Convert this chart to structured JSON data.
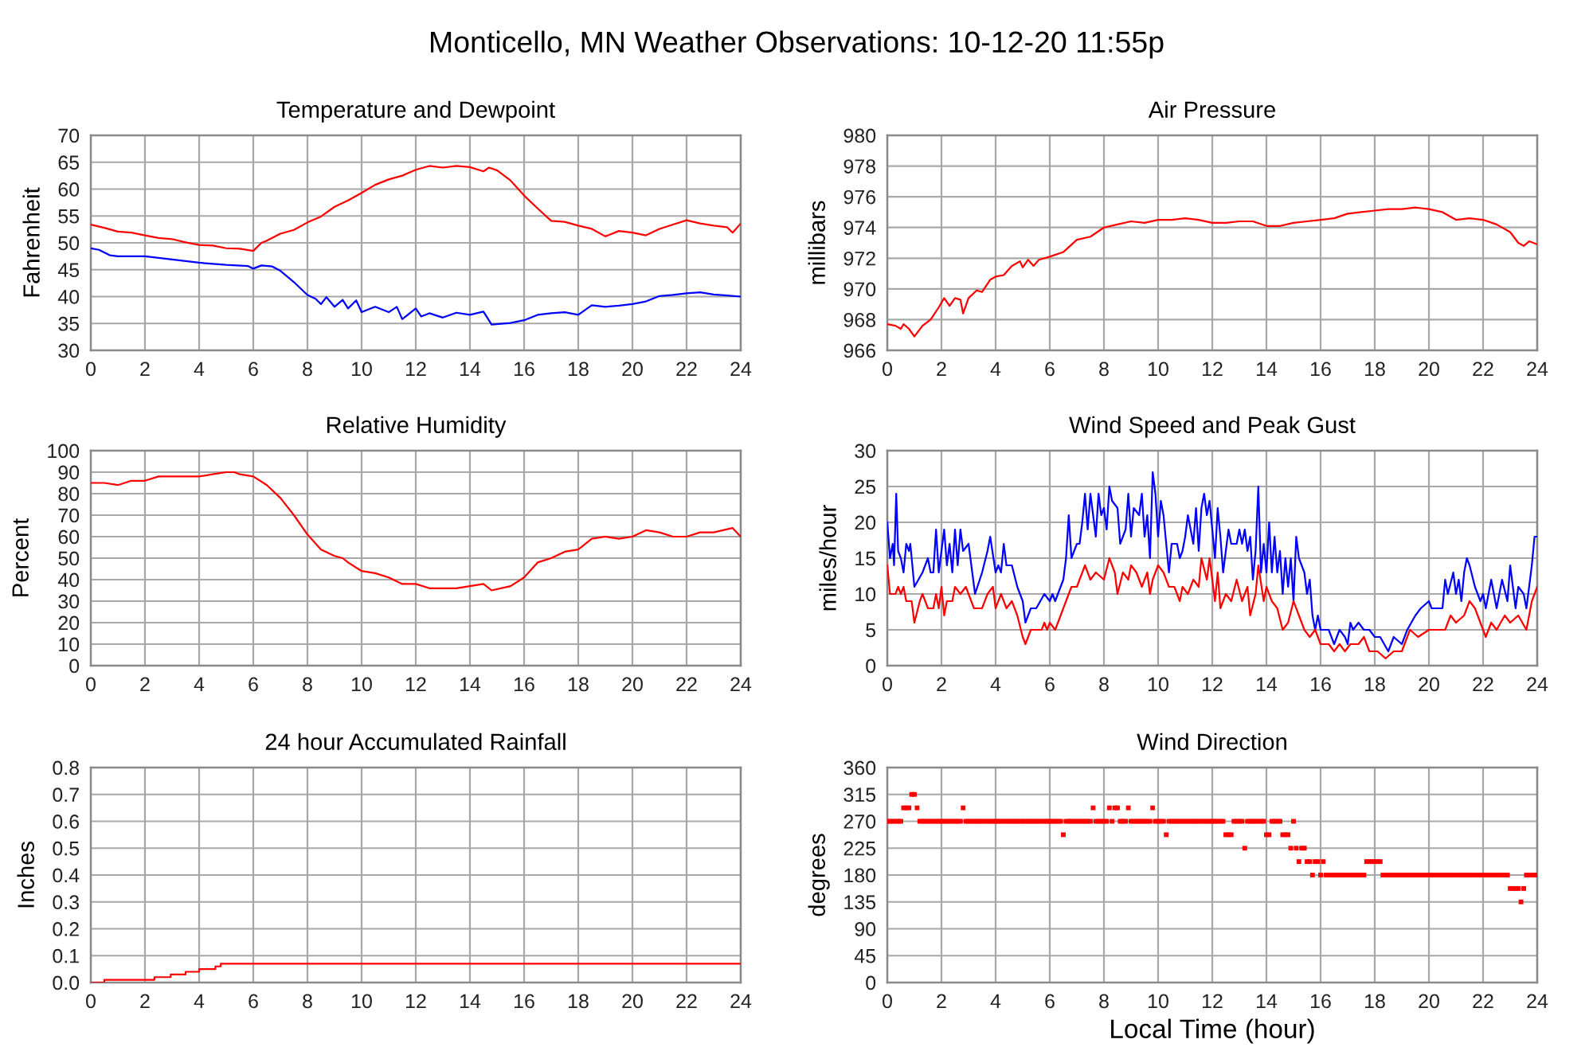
{
  "chart_data": [
    {
      "type": "line",
      "title": "Temperature and Dewpoint",
      "ylabel": "Fahrenheit",
      "annotations": [
        "Monticello, MN Weather Observations: 10-12-20 11:55p"
      ],
      "xlim": [
        0,
        24
      ],
      "xticks": [
        0,
        2,
        4,
        6,
        8,
        10,
        12,
        14,
        16,
        18,
        20,
        22,
        24
      ],
      "ylim": [
        30,
        70
      ],
      "yticks": [
        30,
        35,
        40,
        45,
        50,
        55,
        60,
        65,
        70
      ],
      "grid": true,
      "series": [
        {
          "color": "#ff0000",
          "x": [
            0,
            0.5,
            1,
            1.5,
            2,
            2.5,
            3,
            3.5,
            4,
            4.5,
            5,
            5.5,
            6,
            6.3,
            6.5,
            7,
            7.5,
            8,
            8.5,
            9,
            9.5,
            10,
            10.5,
            11,
            11.5,
            12,
            12.5,
            13,
            13.5,
            14,
            14.5,
            14.7,
            15,
            15.5,
            16,
            16.5,
            17,
            17.5,
            18,
            18.5,
            19,
            19.5,
            20,
            20.5,
            21,
            21.5,
            22,
            22.5,
            23,
            23.5,
            23.7,
            24
          ],
          "values": [
            53.4,
            52.8,
            52.1,
            51.9,
            51.4,
            50.9,
            50.7,
            50.1,
            49.6,
            49.5,
            49.0,
            48.9,
            48.5,
            50.0,
            50.4,
            51.7,
            52.4,
            53.8,
            54.9,
            56.7,
            57.9,
            59.3,
            60.8,
            61.8,
            62.5,
            63.6,
            64.3,
            64.0,
            64.3,
            64.1,
            63.3,
            64.0,
            63.5,
            61.6,
            58.8,
            56.4,
            54.1,
            53.9,
            53.2,
            52.6,
            51.2,
            52.2,
            51.9,
            51.4,
            52.6,
            53.4,
            54.2,
            53.6,
            53.2,
            52.9,
            51.9,
            53.6
          ]
        },
        {
          "color": "#0000ff",
          "x": [
            0,
            0.3,
            0.7,
            1,
            2,
            3,
            4,
            5,
            5.8,
            6,
            6.3,
            6.7,
            7,
            7.5,
            8,
            8.3,
            8.5,
            8.7,
            9,
            9.3,
            9.5,
            9.8,
            10,
            10.5,
            11,
            11.3,
            11.5,
            12,
            12.2,
            12.5,
            13,
            13.5,
            14,
            14.5,
            14.8,
            15.5,
            16,
            16.5,
            17,
            17.5,
            18,
            18.5,
            19,
            19.5,
            20,
            20.5,
            21,
            21.5,
            22,
            22.5,
            23,
            23.5,
            24
          ],
          "values": [
            49.0,
            48.7,
            47.7,
            47.5,
            47.5,
            46.9,
            46.3,
            45.9,
            45.7,
            45.2,
            45.8,
            45.6,
            44.8,
            42.7,
            40.3,
            39.6,
            38.6,
            39.9,
            38.1,
            39.4,
            37.8,
            39.3,
            37.1,
            38.1,
            37.1,
            38.1,
            35.8,
            37.8,
            36.3,
            36.9,
            36.1,
            37.0,
            36.6,
            37.2,
            34.8,
            35.1,
            35.6,
            36.6,
            36.9,
            37.1,
            36.6,
            38.4,
            38.1,
            38.3,
            38.6,
            39.1,
            40.1,
            40.3,
            40.6,
            40.8,
            40.4,
            40.2,
            40.0
          ]
        }
      ]
    },
    {
      "type": "line",
      "title": "Air Pressure",
      "ylabel": "millibars",
      "xlim": [
        0,
        24
      ],
      "xticks": [
        0,
        2,
        4,
        6,
        8,
        10,
        12,
        14,
        16,
        18,
        20,
        22,
        24
      ],
      "ylim": [
        966,
        980
      ],
      "yticks": [
        966,
        968,
        970,
        972,
        974,
        976,
        978,
        980
      ],
      "grid": true,
      "series": [
        {
          "color": "#ff0000",
          "x": [
            0,
            0.3,
            0.5,
            0.6,
            0.8,
            1,
            1.3,
            1.6,
            1.9,
            2.1,
            2.3,
            2.5,
            2.7,
            2.8,
            3,
            3.3,
            3.5,
            3.8,
            4,
            4.3,
            4.6,
            4.9,
            5,
            5.2,
            5.4,
            5.6,
            6,
            6.5,
            7,
            7.5,
            8,
            8.5,
            9,
            9.5,
            10,
            10.5,
            11,
            11.5,
            12,
            12.5,
            13,
            13.5,
            14,
            14.5,
            15,
            15.5,
            16,
            16.5,
            17,
            17.5,
            18,
            18.5,
            19,
            19.5,
            20,
            20.5,
            21,
            21.5,
            22,
            22.5,
            23,
            23.3,
            23.5,
            23.7,
            24
          ],
          "values": [
            967.7,
            967.6,
            967.4,
            967.7,
            967.4,
            966.9,
            967.6,
            968.0,
            968.8,
            969.4,
            968.9,
            969.4,
            969.3,
            968.4,
            969.4,
            969.9,
            969.8,
            970.6,
            970.8,
            970.9,
            971.5,
            971.8,
            971.4,
            971.9,
            971.5,
            971.9,
            972.1,
            972.4,
            973.2,
            973.4,
            974.0,
            974.2,
            974.4,
            974.3,
            974.5,
            974.5,
            974.6,
            974.5,
            974.3,
            974.3,
            974.4,
            974.4,
            974.1,
            974.1,
            974.3,
            974.4,
            974.5,
            974.6,
            974.9,
            975.0,
            975.1,
            975.2,
            975.2,
            975.3,
            975.2,
            975.0,
            974.5,
            974.6,
            974.5,
            974.2,
            973.7,
            973.0,
            972.8,
            973.1,
            972.9
          ]
        }
      ]
    },
    {
      "type": "line",
      "title": "Relative Humidity",
      "ylabel": "Percent",
      "xlim": [
        0,
        24
      ],
      "xticks": [
        0,
        2,
        4,
        6,
        8,
        10,
        12,
        14,
        16,
        18,
        20,
        22,
        24
      ],
      "ylim": [
        0,
        100
      ],
      "yticks": [
        0,
        10,
        20,
        30,
        40,
        50,
        60,
        70,
        80,
        90,
        100
      ],
      "grid": true,
      "series": [
        {
          "color": "#ff0000",
          "x": [
            0,
            0.5,
            1,
            1.5,
            2,
            2.5,
            3,
            3.5,
            4,
            4.5,
            5,
            5.3,
            5.5,
            6,
            6.5,
            7,
            7.5,
            8,
            8.5,
            9,
            9.3,
            9.5,
            10,
            10.5,
            11,
            11.5,
            12,
            12.5,
            13,
            13.5,
            14,
            14.5,
            14.8,
            15.5,
            16,
            16.5,
            17,
            17.5,
            18,
            18.5,
            19,
            19.5,
            20,
            20.5,
            21,
            21.5,
            22,
            22.5,
            23,
            23.7,
            24
          ],
          "values": [
            85,
            85,
            84,
            86,
            86,
            88,
            88,
            88,
            88,
            89,
            90,
            90,
            89,
            88,
            84,
            78,
            70,
            61,
            54,
            51,
            50,
            48,
            44,
            43,
            41,
            38,
            38,
            36,
            36,
            36,
            37,
            38,
            35,
            37,
            41,
            48,
            50,
            53,
            54,
            59,
            60,
            59,
            60,
            63,
            62,
            60,
            60,
            62,
            62,
            64,
            60
          ]
        }
      ]
    },
    {
      "type": "line",
      "title": "Wind Speed and Peak Gust",
      "ylabel": "miles/hour",
      "xlim": [
        0,
        24
      ],
      "xticks": [
        0,
        2,
        4,
        6,
        8,
        10,
        12,
        14,
        16,
        18,
        20,
        22,
        24
      ],
      "ylim": [
        0,
        30
      ],
      "yticks": [
        0,
        5,
        10,
        15,
        20,
        25,
        30
      ],
      "grid": true,
      "series": [
        {
          "color": "#0000ff",
          "x": [
            0,
            0.1,
            0.2,
            0.25,
            0.33,
            0.4,
            0.5,
            0.6,
            0.7,
            0.8,
            0.85,
            1.0,
            1.3,
            1.5,
            1.6,
            1.7,
            1.8,
            1.9,
            2.0,
            2.1,
            2.2,
            2.3,
            2.4,
            2.5,
            2.6,
            2.7,
            2.8,
            3.0,
            3.24,
            3.5,
            3.7,
            3.8,
            4.0,
            4.1,
            4.2,
            4.3,
            4.4,
            4.6,
            4.8,
            5.0,
            5.1,
            5.3,
            5.5,
            5.8,
            6.0,
            6.1,
            6.2,
            6.4,
            6.5,
            6.6,
            6.7,
            6.8,
            7.0,
            7.1,
            7.2,
            7.3,
            7.4,
            7.5,
            7.6,
            7.7,
            7.8,
            7.9,
            8.0,
            8.1,
            8.2,
            8.3,
            8.5,
            8.6,
            8.8,
            8.9,
            9.0,
            9.1,
            9.3,
            9.4,
            9.5,
            9.6,
            9.7,
            9.8,
            9.9,
            10.0,
            10.1,
            10.2,
            10.4,
            10.5,
            10.7,
            10.8,
            10.9,
            11.0,
            11.1,
            11.2,
            11.3,
            11.4,
            11.5,
            11.6,
            11.7,
            11.8,
            11.9,
            12.0,
            12.1,
            12.2,
            12.3,
            12.4,
            12.6,
            12.7,
            12.9,
            13.0,
            13.1,
            13.2,
            13.3,
            13.4,
            13.5,
            13.6,
            13.7,
            13.8,
            13.9,
            14.0,
            14.1,
            14.2,
            14.3,
            14.4,
            14.5,
            14.6,
            14.7,
            14.8,
            14.9,
            15.0,
            15.1,
            15.2,
            15.4,
            15.5,
            15.6,
            15.7,
            15.8,
            15.9,
            16.0,
            16.3,
            16.5,
            16.7,
            16.9,
            17.0,
            17.1,
            17.2,
            17.4,
            17.6,
            17.8,
            18.0,
            18.2,
            18.5,
            18.7,
            19.0,
            19.2,
            19.5,
            19.7,
            20.0,
            20.1,
            20.5,
            20.6,
            20.7,
            20.9,
            21.0,
            21.1,
            21.2,
            21.3,
            21.4,
            21.5,
            21.7,
            21.9,
            22.0,
            22.1,
            22.3,
            22.5,
            22.7,
            22.9,
            23.0,
            23.2,
            23.3,
            23.5,
            23.6,
            23.8,
            23.9,
            24
          ],
          "values": [
            20,
            15,
            17,
            14,
            24,
            16,
            15,
            13,
            17,
            16,
            17,
            11,
            13,
            15,
            13,
            13,
            19,
            13,
            16,
            19,
            14,
            17,
            13,
            19,
            14,
            19,
            16,
            17,
            10,
            13,
            16,
            18,
            13,
            14,
            13,
            17,
            14,
            14,
            11,
            9,
            6,
            8,
            8,
            10,
            9,
            10,
            9,
            11,
            12,
            15,
            21,
            15,
            17,
            17,
            20,
            24,
            19,
            24,
            21,
            18,
            24,
            21,
            22,
            19,
            25,
            23,
            22,
            17,
            19,
            24,
            18,
            22,
            21,
            24,
            18,
            21,
            15,
            27,
            24,
            18,
            23,
            21,
            13,
            17,
            17,
            15,
            16,
            18,
            21,
            19,
            17,
            22,
            16,
            22,
            24,
            21,
            23,
            19,
            15,
            22,
            18,
            13,
            19,
            17,
            17,
            19,
            17,
            19,
            16,
            18,
            12,
            16,
            25,
            13,
            17,
            13,
            20,
            13,
            18,
            13,
            16,
            10,
            15,
            11,
            15,
            9,
            18,
            15,
            13,
            10,
            12,
            7,
            5,
            7,
            5,
            5,
            3,
            5,
            4,
            3,
            6,
            5,
            6,
            5,
            5,
            4,
            4,
            2,
            4,
            3,
            5,
            7,
            8,
            9,
            8,
            8,
            12,
            10,
            13,
            10,
            12,
            9,
            13,
            15,
            14,
            11,
            9,
            10,
            8,
            12,
            8,
            12,
            9,
            14,
            8,
            11,
            10,
            8,
            14,
            18,
            18
          ]
        },
        {
          "color": "#ff0000",
          "x": [
            0,
            0.1,
            0.3,
            0.4,
            0.5,
            0.6,
            0.7,
            0.9,
            1.0,
            1.2,
            1.3,
            1.5,
            1.7,
            1.8,
            1.9,
            2.0,
            2.1,
            2.2,
            2.4,
            2.5,
            2.7,
            2.9,
            3.0,
            3.2,
            3.5,
            3.7,
            3.9,
            4.0,
            4.2,
            4.4,
            4.6,
            4.8,
            5.0,
            5.1,
            5.3,
            5.7,
            5.8,
            5.9,
            6.0,
            6.2,
            6.4,
            6.6,
            6.8,
            7.0,
            7.2,
            7.3,
            7.5,
            7.7,
            8.0,
            8.2,
            8.4,
            8.5,
            8.7,
            8.9,
            9.0,
            9.2,
            9.4,
            9.6,
            9.7,
            9.8,
            10.0,
            10.2,
            10.4,
            10.6,
            10.8,
            10.9,
            11.1,
            11.3,
            11.5,
            11.6,
            11.8,
            11.9,
            12.0,
            12.1,
            12.2,
            12.3,
            12.5,
            12.7,
            12.9,
            13.1,
            13.3,
            13.4,
            13.6,
            13.7,
            13.9,
            14.0,
            14.2,
            14.4,
            14.6,
            14.8,
            15.0,
            15.2,
            15.4,
            15.6,
            15.8,
            16.0,
            16.3,
            16.5,
            16.7,
            16.9,
            17.1,
            17.4,
            17.6,
            17.8,
            18.1,
            18.4,
            18.7,
            19.0,
            19.3,
            19.6,
            20.0,
            20.3,
            20.6,
            20.8,
            21.0,
            21.3,
            21.5,
            21.7,
            21.9,
            22.1,
            22.3,
            22.5,
            22.8,
            23.0,
            23.3,
            23.6,
            23.8,
            24
          ],
          "values": [
            14,
            10,
            10,
            11,
            10,
            11,
            9,
            9,
            6,
            9,
            10,
            8,
            8,
            10,
            8,
            11,
            7,
            9,
            9,
            11,
            10,
            11,
            10,
            8,
            8,
            10,
            11,
            8,
            10,
            8,
            9,
            7,
            4,
            3,
            5,
            5,
            6,
            5,
            6,
            5,
            7,
            9,
            11,
            11,
            13,
            14,
            12,
            13,
            12,
            15,
            13,
            10,
            13,
            12,
            14,
            13,
            11,
            13,
            10,
            12,
            14,
            13,
            11,
            11,
            9,
            11,
            10,
            12,
            11,
            15,
            12,
            15,
            12,
            9,
            13,
            8,
            10,
            9,
            12,
            9,
            11,
            7,
            10,
            14,
            9,
            11,
            9,
            8,
            5,
            6,
            9,
            7,
            5,
            4,
            5,
            3,
            3,
            2,
            3,
            2,
            3,
            3,
            4,
            2,
            2,
            1,
            2,
            2,
            5,
            4,
            5,
            5,
            5,
            7,
            6,
            7,
            9,
            8,
            6,
            4,
            6,
            5,
            7,
            6,
            7,
            5,
            9,
            11
          ]
        }
      ]
    },
    {
      "type": "step",
      "title": "24 hour Accumulated Rainfall",
      "ylabel": "Inches",
      "xlim": [
        0,
        24
      ],
      "xticks": [
        0,
        2,
        4,
        6,
        8,
        10,
        12,
        14,
        16,
        18,
        20,
        22,
        24
      ],
      "ylim": [
        0,
        0.8
      ],
      "yticks": [
        {
          "value": 0,
          "label": "0.0"
        },
        0.1,
        0.2,
        0.3,
        0.4,
        0.5,
        0.6,
        0.7,
        0.8
      ],
      "grid": true,
      "series": [
        {
          "color": "#ff0000",
          "x": [
            0,
            0.5,
            2.35,
            2.95,
            3.5,
            4.0,
            4.6,
            4.8,
            24
          ],
          "values": [
            0,
            0.01,
            0.02,
            0.03,
            0.04,
            0.05,
            0.06,
            0.07,
            0.07
          ]
        }
      ]
    },
    {
      "type": "scatter",
      "title": "Wind Direction",
      "ylabel": "degrees",
      "xlabel": "Local Time (hour)",
      "marker": "square",
      "xlim": [
        0,
        24
      ],
      "xticks": [
        0,
        2,
        4,
        6,
        8,
        10,
        12,
        14,
        16,
        18,
        20,
        22,
        24
      ],
      "ylim": [
        0,
        360
      ],
      "yticks": [
        0,
        45,
        90,
        135,
        180,
        225,
        270,
        315,
        360
      ],
      "grid": true,
      "series": [
        {
          "color": "#ff0000",
          "x": [
            0,
            0.1,
            0.2,
            0.3,
            0.4,
            0.5,
            0.6,
            0.7,
            0.8,
            0.9,
            1,
            1.1,
            1.2,
            1.3,
            1.4,
            1.5,
            1.6,
            1.7,
            1.8,
            1.9,
            2,
            2.1,
            2.2,
            2.3,
            2.4,
            2.5,
            2.6,
            2.7,
            2.8,
            2.9,
            3,
            3.1,
            3.2,
            3.3,
            3.4,
            3.5,
            3.6,
            3.7,
            3.8,
            3.9,
            4,
            4.1,
            4.2,
            4.3,
            4.4,
            4.5,
            4.6,
            4.7,
            4.8,
            4.9,
            5,
            5.1,
            5.2,
            5.3,
            5.4,
            5.5,
            5.6,
            5.7,
            5.8,
            5.9,
            6,
            6.1,
            6.2,
            6.3,
            6.4,
            6.5,
            6.6,
            6.7,
            6.8,
            6.9,
            7,
            7.1,
            7.2,
            7.3,
            7.4,
            7.5,
            7.6,
            7.7,
            7.8,
            7.9,
            8,
            8.1,
            8.2,
            8.3,
            8.4,
            8.5,
            8.6,
            8.7,
            8.8,
            8.9,
            9,
            9.1,
            9.2,
            9.3,
            9.4,
            9.5,
            9.6,
            9.7,
            9.8,
            9.9,
            10,
            10.1,
            10.2,
            10.3,
            10.4,
            10.5,
            10.6,
            10.7,
            10.8,
            10.9,
            11,
            11.1,
            11.2,
            11.3,
            11.4,
            11.5,
            11.6,
            11.7,
            11.8,
            11.9,
            12,
            12.1,
            12.2,
            12.3,
            12.4,
            12.5,
            12.6,
            12.7,
            12.8,
            12.9,
            13,
            13.1,
            13.2,
            13.3,
            13.4,
            13.5,
            13.6,
            13.7,
            13.8,
            13.9,
            14,
            14.1,
            14.2,
            14.3,
            14.4,
            14.5,
            14.6,
            14.7,
            14.8,
            14.9,
            15,
            15.1,
            15.2,
            15.3,
            15.4,
            15.5,
            15.6,
            15.7,
            15.8,
            15.9,
            16,
            16.1,
            16.2,
            16.3,
            16.4,
            16.5,
            16.6,
            16.7,
            16.8,
            16.9,
            17,
            17.1,
            17.2,
            17.3,
            17.4,
            17.5,
            17.6,
            17.7,
            17.8,
            17.9,
            18,
            18.1,
            18.2,
            18.3,
            18.4,
            18.5,
            18.6,
            18.7,
            18.8,
            18.9,
            19,
            19.1,
            19.2,
            19.3,
            19.4,
            19.5,
            19.6,
            19.7,
            19.8,
            19.9,
            20,
            20.1,
            20.2,
            20.3,
            20.4,
            20.5,
            20.6,
            20.7,
            20.8,
            20.9,
            21,
            21.1,
            21.2,
            21.3,
            21.4,
            21.5,
            21.6,
            21.7,
            21.8,
            21.9,
            22,
            22.1,
            22.2,
            22.3,
            22.4,
            22.5,
            22.6,
            22.7,
            22.8,
            22.9,
            23,
            23.1,
            23.2,
            23.3,
            23.4,
            23.5,
            23.6,
            23.7,
            23.8,
            23.9,
            24
          ],
          "values": [
            270,
            270,
            270,
            270,
            270,
            270,
            292.5,
            292.5,
            292.5,
            315,
            315,
            292.5,
            270,
            270,
            270,
            270,
            270,
            270,
            270,
            270,
            270,
            270,
            270,
            270,
            270,
            270,
            270,
            270,
            292.5,
            270,
            270,
            270,
            270,
            270,
            270,
            270,
            270,
            270,
            270,
            270,
            270,
            270,
            270,
            270,
            270,
            270,
            270,
            270,
            270,
            270,
            270,
            270,
            270,
            270,
            270,
            270,
            270,
            270,
            270,
            270,
            270,
            270,
            270,
            270,
            270,
            247.5,
            270,
            270,
            270,
            270,
            270,
            270,
            270,
            270,
            270,
            270,
            292.5,
            270,
            270,
            270,
            270,
            270,
            292.5,
            270,
            292.5,
            292.5,
            270,
            270,
            270,
            292.5,
            270,
            270,
            270,
            270,
            270,
            270,
            270,
            270,
            292.5,
            270,
            270,
            270,
            270,
            247.5,
            270,
            270,
            270,
            270,
            270,
            270,
            270,
            270,
            270,
            270,
            270,
            270,
            270,
            270,
            270,
            270,
            270,
            270,
            270,
            270,
            270,
            247.5,
            247.5,
            247.5,
            270,
            270,
            270,
            270,
            225,
            270,
            270,
            270,
            270,
            270,
            270,
            270,
            247.5,
            247.5,
            270,
            270,
            270,
            270,
            247.5,
            247.5,
            247.5,
            225,
            270,
            225,
            202.5,
            225,
            225,
            202.5,
            202.5,
            180,
            202.5,
            202.5,
            180,
            202.5,
            180,
            180,
            180,
            180,
            180,
            180,
            180,
            180,
            180,
            180,
            180,
            180,
            180,
            180,
            180,
            202.5,
            202.5,
            202.5,
            202.5,
            202.5,
            202.5,
            180,
            180,
            180,
            180,
            180,
            180,
            180,
            180,
            180,
            180,
            180,
            180,
            180,
            180,
            180,
            180,
            180,
            180,
            180,
            180,
            180,
            180,
            180,
            180,
            180,
            180,
            180,
            180,
            180,
            180,
            180,
            180,
            180,
            180,
            180,
            180,
            180,
            180,
            180,
            180,
            180,
            180,
            180,
            180,
            180,
            180,
            180,
            157.5,
            157.5,
            157.5,
            157.5,
            135,
            157.5,
            180,
            180,
            180,
            180,
            180
          ]
        }
      ]
    }
  ]
}
